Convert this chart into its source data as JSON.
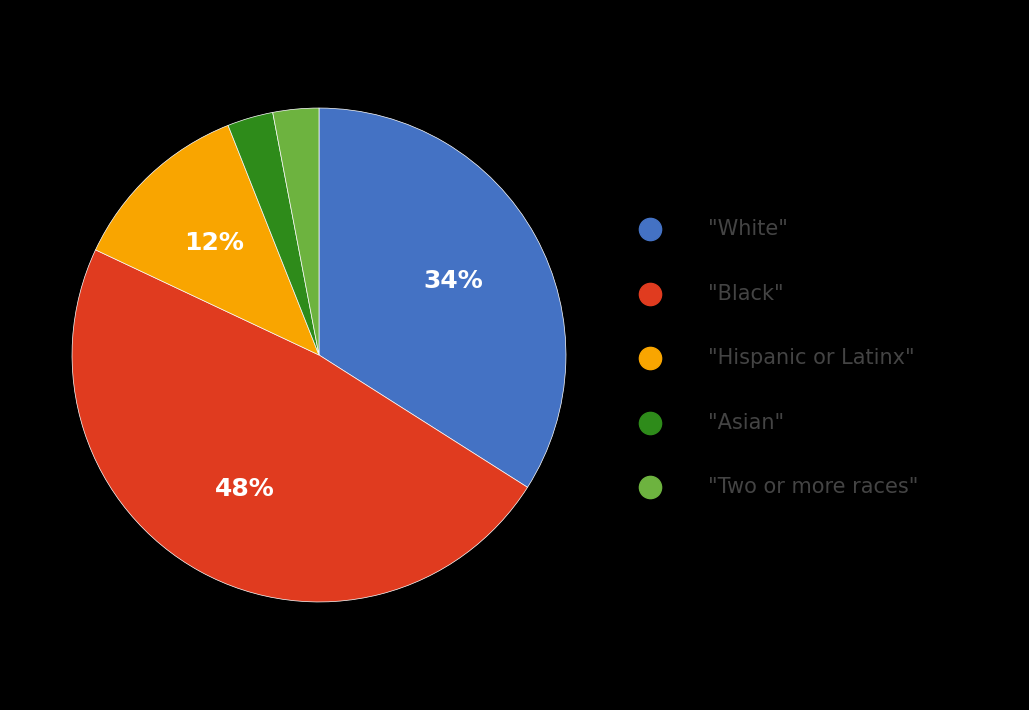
{
  "labels": [
    "\"White\"",
    "\"Black\"",
    "\"Hispanic or Latinx\"",
    "\"Asian\"",
    "\"Two or more races\""
  ],
  "values": [
    34,
    48,
    12,
    3,
    3
  ],
  "colors": [
    "#4472C4",
    "#E03B1F",
    "#F9A500",
    "#2E8B1A",
    "#6DB33F"
  ],
  "autopct_labels": [
    "34%",
    "48%",
    "12%",
    "",
    ""
  ],
  "background_color": "#000000",
  "text_color": "#FFFFFF",
  "legend_text_color": "#444444",
  "startangle": 90,
  "pct_fontsize": 18,
  "legend_fontsize": 15
}
